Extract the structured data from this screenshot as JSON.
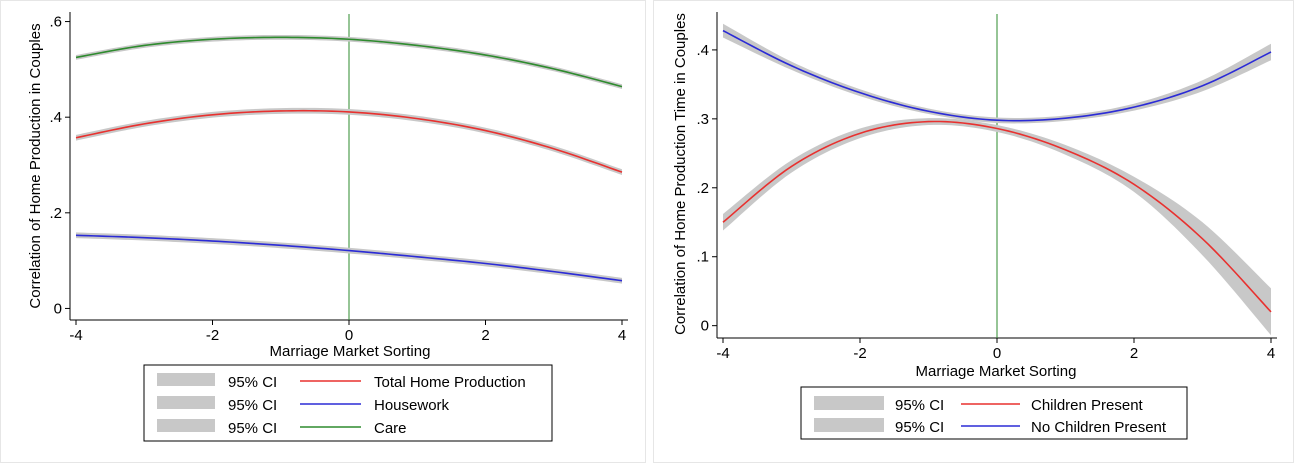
{
  "chart_data": [
    {
      "type": "line",
      "xlabel": "Marriage Market Sorting",
      "ylabel": "Correlation of Home Production in Couples",
      "xlim": [
        -4,
        4
      ],
      "ylim": [
        -0.02,
        0.62
      ],
      "xticks": [
        -4,
        -2,
        0,
        2,
        4
      ],
      "xtick_labels": [
        "-4",
        "-2",
        "0",
        "2",
        "4"
      ],
      "yticks": [
        0,
        0.2,
        0.4,
        0.6
      ],
      "ytick_labels": [
        "0",
        ".2",
        ".4",
        ".6"
      ],
      "reference_line_x": 0,
      "reference_line_color": "#2e8b2e",
      "ci_color": "#c8c8c8",
      "grid": false,
      "legend_position": "bottom",
      "series": [
        {
          "name": "Total Home Production",
          "color": "#e8312f",
          "x": [
            -4,
            -3,
            -2,
            -1,
            0,
            1,
            2,
            3,
            4
          ],
          "values": [
            0.357,
            0.386,
            0.405,
            0.413,
            0.411,
            0.397,
            0.372,
            0.334,
            0.285
          ],
          "ci_half_width": 0.006
        },
        {
          "name": "Housework",
          "color": "#2b2bd6",
          "x": [
            -4,
            -3,
            -2,
            -1,
            0,
            1,
            2,
            3,
            4
          ],
          "values": [
            0.153,
            0.148,
            0.141,
            0.132,
            0.121,
            0.108,
            0.094,
            0.077,
            0.058
          ],
          "ci_half_width": 0.006
        },
        {
          "name": "Care",
          "color": "#2e8b2e",
          "x": [
            -4,
            -3,
            -2,
            -1,
            0,
            1,
            2,
            3,
            4
          ],
          "values": [
            0.525,
            0.55,
            0.563,
            0.567,
            0.563,
            0.55,
            0.53,
            0.501,
            0.464
          ],
          "ci_half_width": 0.005
        }
      ],
      "legend": [
        {
          "ci_label": "95% CI",
          "series_label": "Total Home Production",
          "color": "#e8312f"
        },
        {
          "ci_label": "95% CI",
          "series_label": "Housework",
          "color": "#2b2bd6"
        },
        {
          "ci_label": "95% CI",
          "series_label": "Care",
          "color": "#2e8b2e"
        }
      ]
    },
    {
      "type": "line",
      "xlabel": "Marriage Market Sorting",
      "ylabel": "Correlation of Home Production Time in Couples",
      "xlim": [
        -4,
        4
      ],
      "ylim": [
        -0.015,
        0.455
      ],
      "xticks": [
        -4,
        -2,
        0,
        2,
        4
      ],
      "xtick_labels": [
        "-4",
        "-2",
        "0",
        "2",
        "4"
      ],
      "yticks": [
        0,
        0.1,
        0.2,
        0.3,
        0.4
      ],
      "ytick_labels": [
        "0",
        ".1",
        ".2",
        ".3",
        ".4"
      ],
      "reference_line_x": 0,
      "reference_line_color": "#2e8b2e",
      "ci_color": "#c8c8c8",
      "grid": false,
      "legend_position": "bottom",
      "series": [
        {
          "name": "Children Present",
          "color": "#e8312f",
          "x": [
            -4,
            -3,
            -2,
            -1,
            0,
            1,
            2,
            3,
            4
          ],
          "ci_half_width": [
            0.012,
            0.009,
            0.007,
            0.005,
            0.005,
            0.007,
            0.011,
            0.024,
            0.034
          ],
          "values": [
            0.15,
            0.231,
            0.279,
            0.296,
            0.286,
            0.255,
            0.205,
            0.126,
            0.02
          ]
        },
        {
          "name": "No Children Present",
          "color": "#2b2bd6",
          "x": [
            -4,
            -3,
            -2,
            -1,
            0,
            1,
            2,
            3,
            4
          ],
          "ci_half_width": [
            0.01,
            0.006,
            0.005,
            0.004,
            0.004,
            0.004,
            0.005,
            0.008,
            0.012
          ],
          "values": [
            0.428,
            0.377,
            0.338,
            0.311,
            0.298,
            0.301,
            0.317,
            0.348,
            0.397
          ]
        }
      ],
      "legend": [
        {
          "ci_label": "95% CI",
          "series_label": "Children Present",
          "color": "#e8312f"
        },
        {
          "ci_label": "95% CI",
          "series_label": "No Children Present",
          "color": "#2b2bd6"
        }
      ]
    }
  ]
}
